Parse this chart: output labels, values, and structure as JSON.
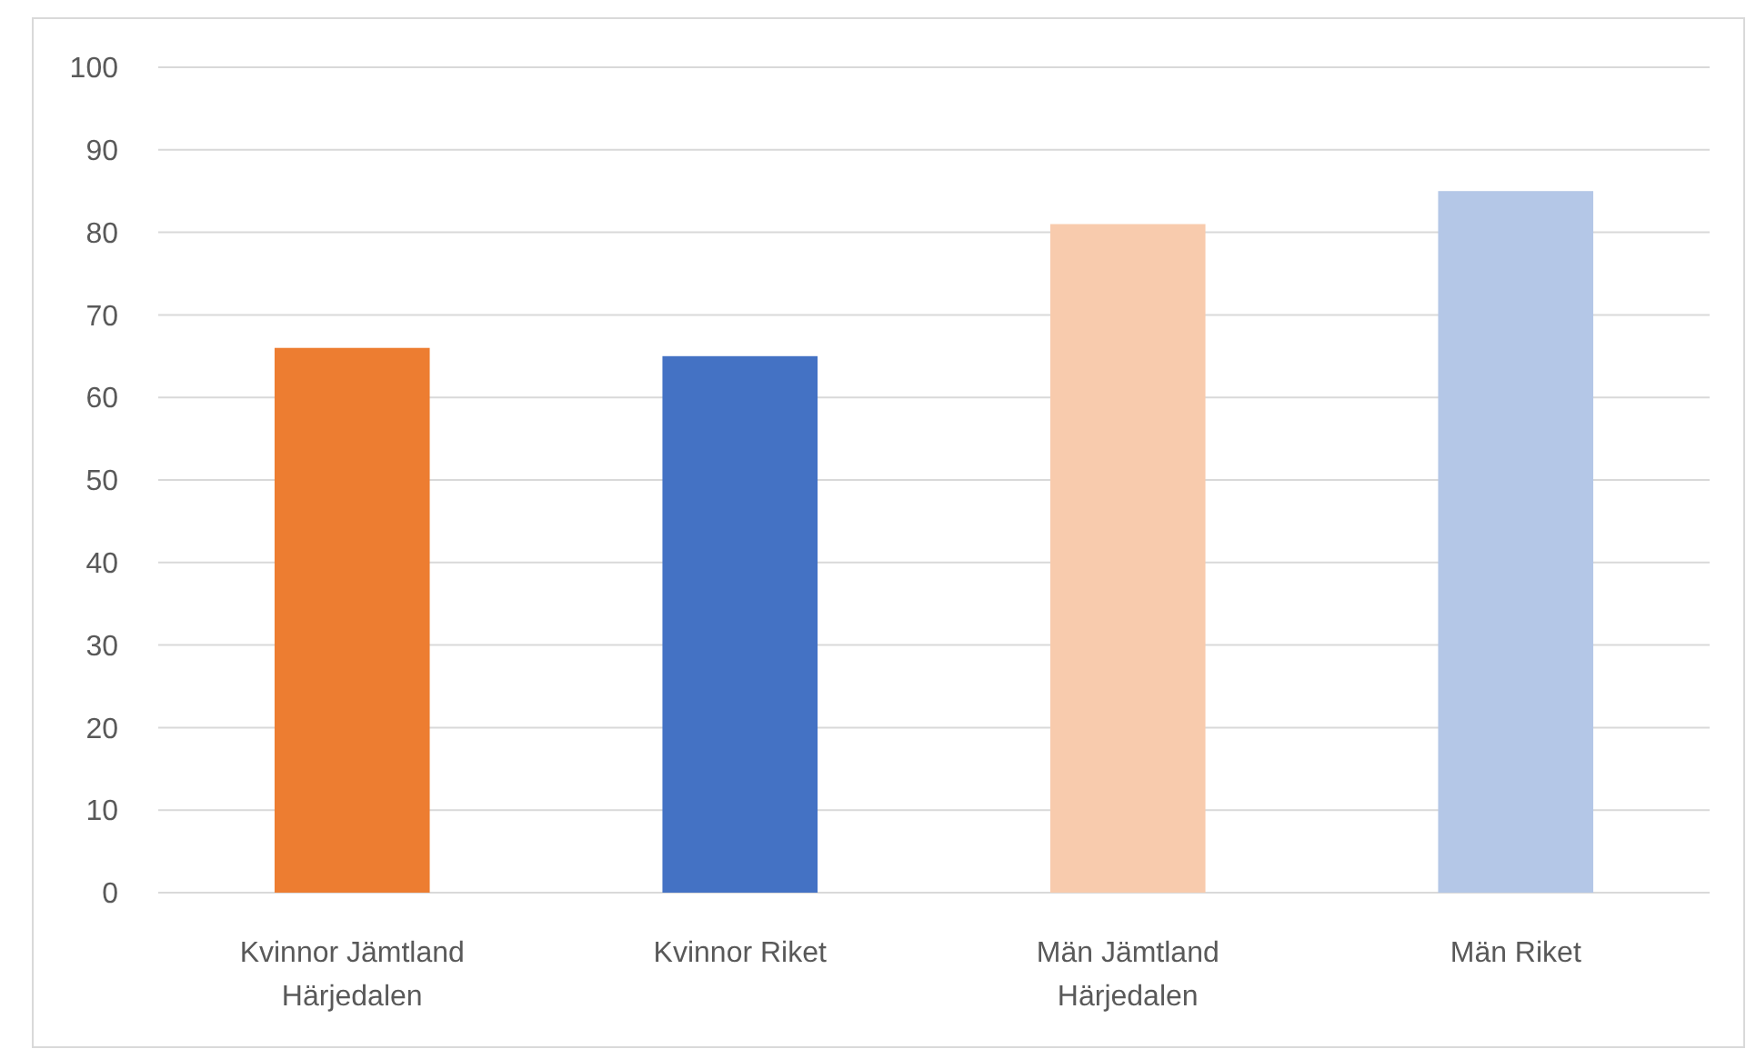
{
  "chart_data": {
    "type": "bar",
    "categories": [
      "Kvinnor Jämtland Härjedalen",
      "Kvinnor Riket",
      "Män Jämtland Härjedalen",
      "Män Riket"
    ],
    "values": [
      66,
      65,
      81,
      85
    ],
    "colors": [
      "#ed7d31",
      "#4472c4",
      "#f8cbad",
      "#b4c7e7"
    ],
    "ylim": [
      0,
      100
    ],
    "yticks": [
      0,
      10,
      20,
      30,
      40,
      50,
      60,
      70,
      80,
      90,
      100
    ],
    "grid": "y"
  }
}
